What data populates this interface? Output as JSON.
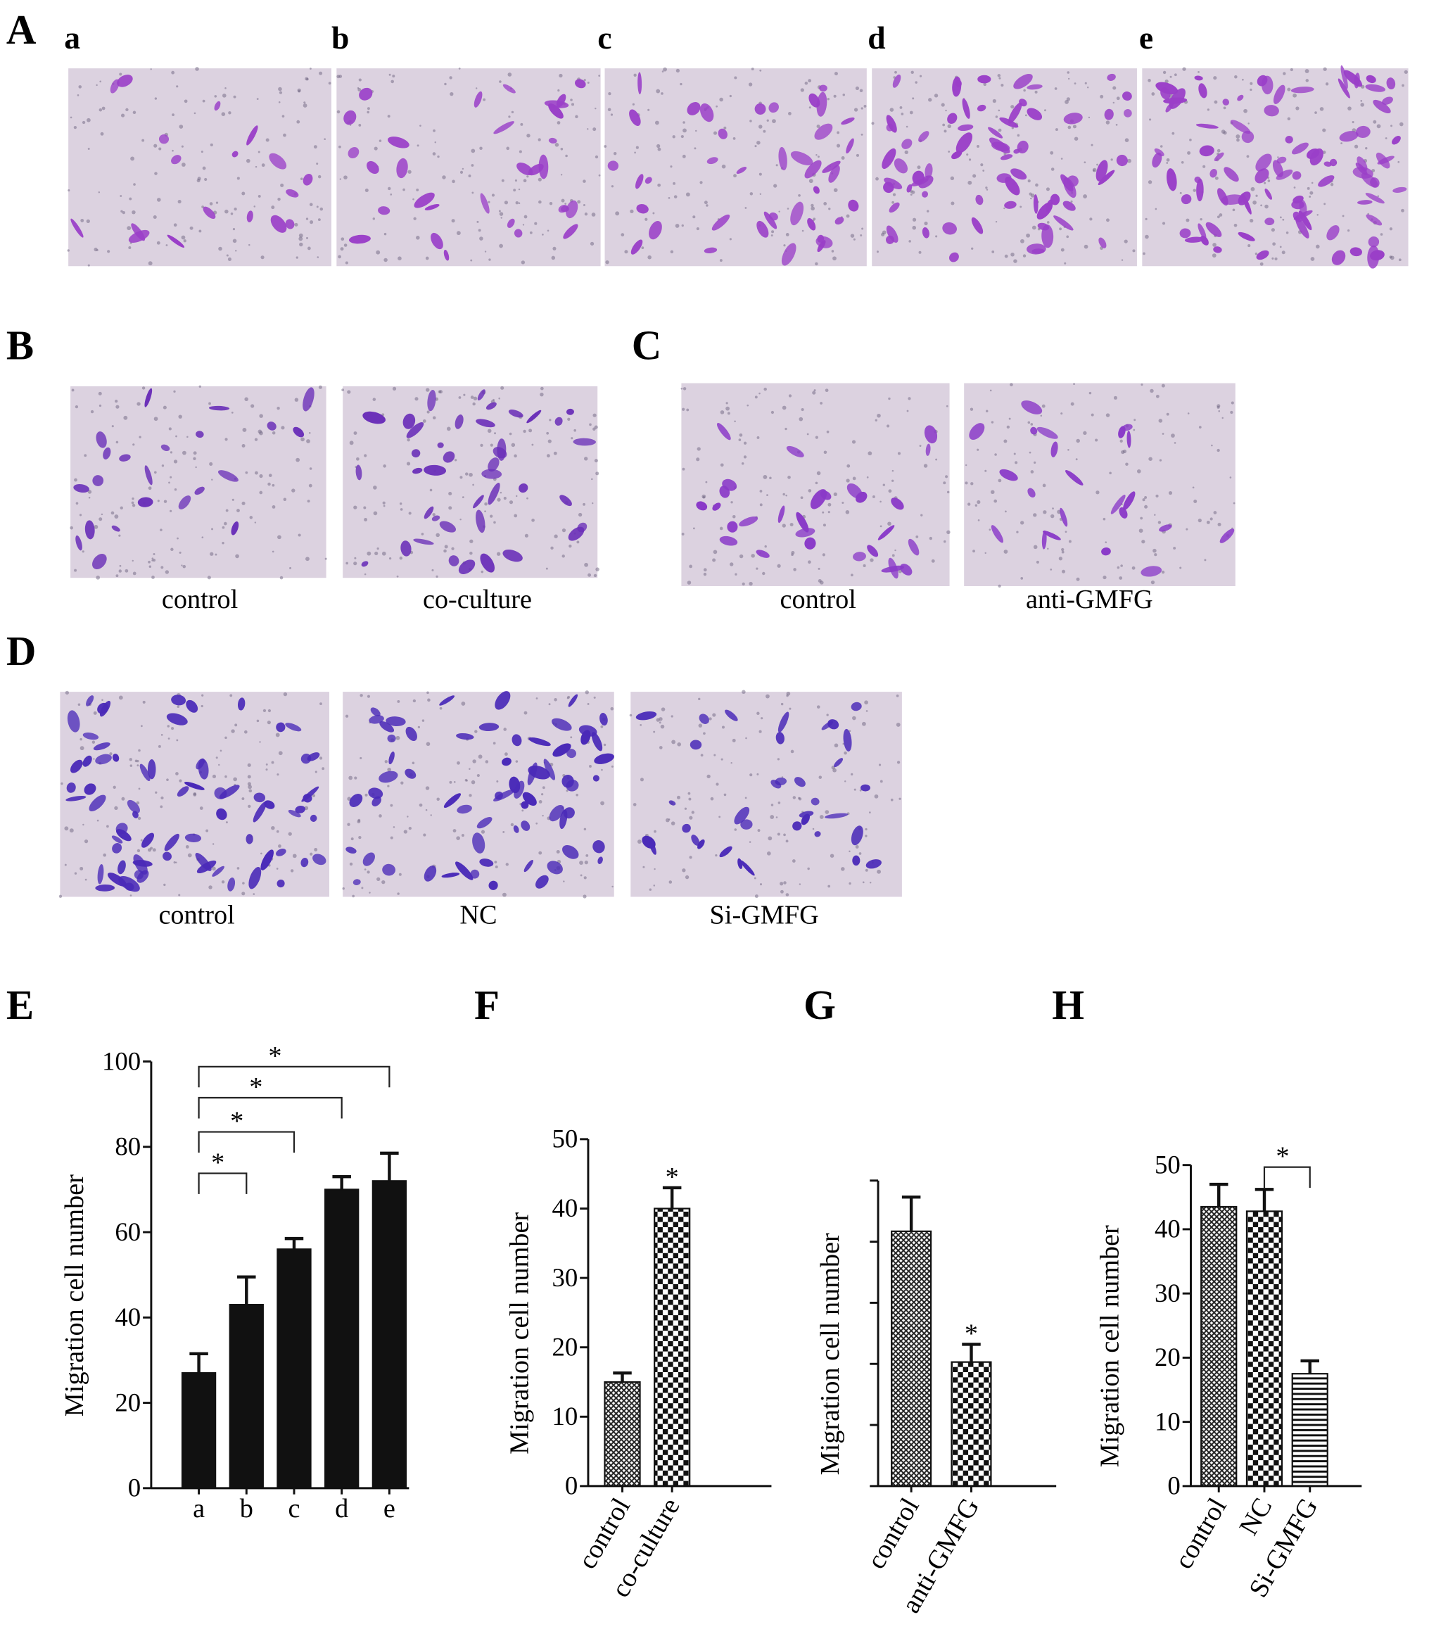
{
  "panel_A": {
    "label": "A",
    "sublabels": [
      "a",
      "b",
      "c",
      "d",
      "e"
    ]
  },
  "panel_B": {
    "label": "B",
    "captions": [
      "control",
      "co-culture"
    ]
  },
  "panel_C": {
    "label": "C",
    "captions": [
      "control",
      "anti-GMFG"
    ]
  },
  "panel_D": {
    "label": "D",
    "captions": [
      "control",
      "NC",
      "Si-GMFG"
    ]
  },
  "chart_data": [
    {
      "type": "bar",
      "panel": "E",
      "ylabel": "Migration cell number",
      "categories": [
        "a",
        "b",
        "c",
        "d",
        "e"
      ],
      "values": [
        27,
        43,
        56,
        70,
        72
      ],
      "errors": [
        4.5,
        6.5,
        2.5,
        3,
        6.5
      ],
      "color": "#111111",
      "ylim": [
        0,
        100
      ],
      "yticks": [
        0,
        20,
        40,
        60,
        80,
        100
      ],
      "comparisons": [
        {
          "between": [
            "a",
            "b"
          ],
          "label": "*"
        },
        {
          "between": [
            "a",
            "c"
          ],
          "label": "*"
        },
        {
          "between": [
            "a",
            "d"
          ],
          "label": "*"
        },
        {
          "between": [
            "a",
            "e"
          ],
          "label": "*"
        }
      ]
    },
    {
      "type": "bar",
      "panel": "F",
      "ylabel": "Migration cell number",
      "categories": [
        "control",
        "co-culture"
      ],
      "values": [
        15,
        40
      ],
      "errors": [
        1.3,
        3
      ],
      "patterns": [
        "crosshatch",
        "checker"
      ],
      "ylim": [
        0,
        50
      ],
      "yticks": [
        0,
        10,
        20,
        30,
        40,
        50
      ],
      "annotations": [
        {
          "category": "co-culture",
          "label": "*"
        }
      ]
    },
    {
      "type": "bar",
      "panel": "G",
      "ylabel": "Migration cell number",
      "categories": [
        "control",
        "anti-GMFG"
      ],
      "values": [
        41.7,
        20.3
      ],
      "errors": [
        5.6,
        2.9
      ],
      "patterns": [
        "crosshatch",
        "checker"
      ],
      "ylim": [
        0,
        50
      ],
      "yticks": [
        0,
        10,
        20,
        30,
        40,
        50
      ],
      "tick_labels": false,
      "annotations": [
        {
          "category": "anti-GMFG",
          "label": "*"
        }
      ]
    },
    {
      "type": "bar",
      "panel": "H",
      "ylabel": "Migration cell number",
      "categories": [
        "control",
        "NC",
        "Si-GMFG"
      ],
      "values": [
        43.5,
        42.8,
        17.5
      ],
      "errors": [
        3.5,
        3.4,
        2
      ],
      "patterns": [
        "crosshatch",
        "checker",
        "hlines"
      ],
      "ylim": [
        0,
        50
      ],
      "yticks": [
        0,
        10,
        20,
        30,
        40,
        50
      ],
      "comparisons": [
        {
          "between": [
            "NC",
            "Si-GMFG"
          ],
          "label": "*"
        }
      ]
    }
  ]
}
